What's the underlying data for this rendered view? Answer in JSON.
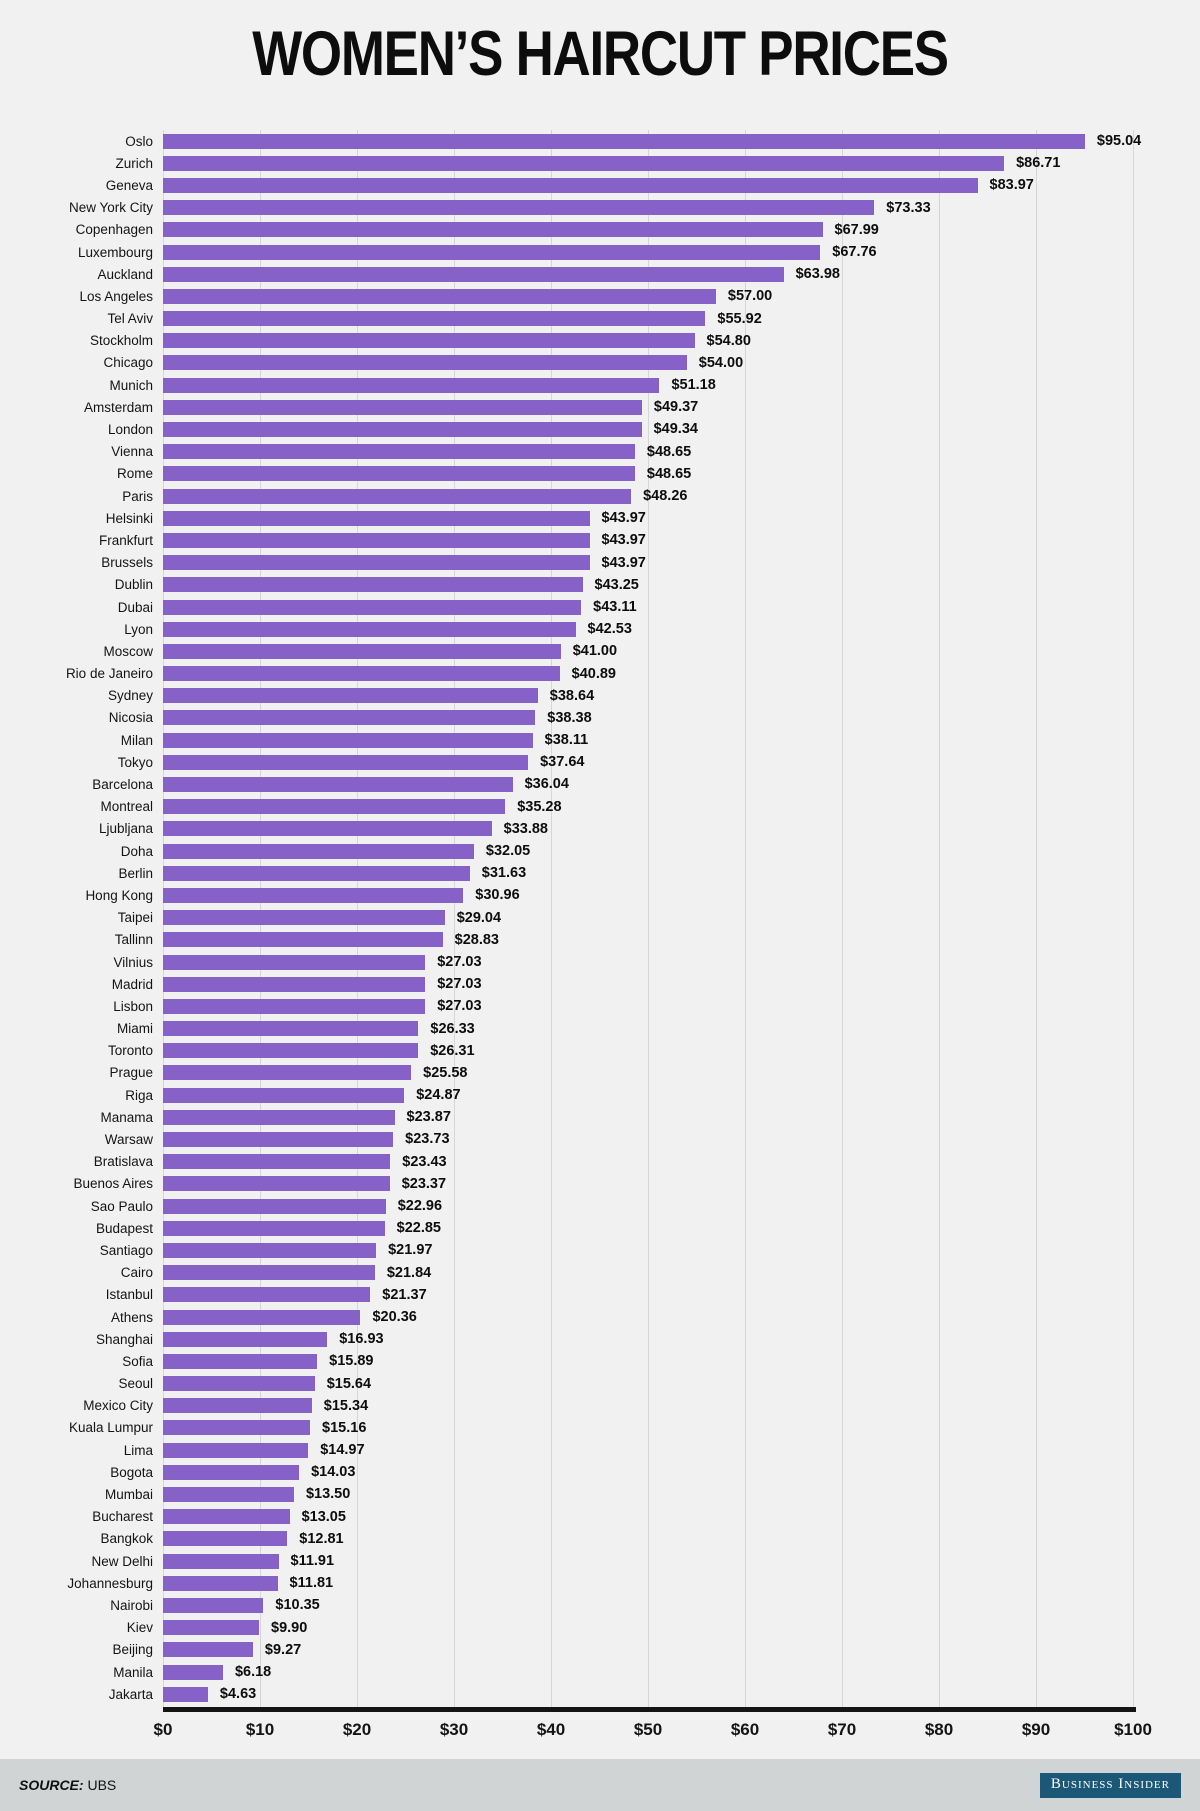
{
  "title": "WOMEN’S HAIRCUT PRICES",
  "chart_data": {
    "type": "bar",
    "orientation": "horizontal",
    "title": "WOMEN’S HAIRCUT PRICES",
    "unit": "USD",
    "xlim": [
      0,
      100
    ],
    "x_ticks": [
      "$0",
      "$10",
      "$20",
      "$30",
      "$40",
      "$50",
      "$60",
      "$70",
      "$80",
      "$90",
      "$100"
    ],
    "grid": true,
    "legend": "none",
    "bar_color": "#8561c8",
    "categories": [
      "Oslo",
      "Zurich",
      "Geneva",
      "New York City",
      "Copenhagen",
      "Luxembourg",
      "Auckland",
      "Los Angeles",
      "Tel Aviv",
      "Stockholm",
      "Chicago",
      "Munich",
      "Amsterdam",
      "London",
      "Vienna",
      "Rome",
      "Paris",
      "Helsinki",
      "Frankfurt",
      "Brussels",
      "Dublin",
      "Dubai",
      "Lyon",
      "Moscow",
      "Rio de Janeiro",
      "Sydney",
      "Nicosia",
      "Milan",
      "Tokyo",
      "Barcelona",
      "Montreal",
      "Ljubljana",
      "Doha",
      "Berlin",
      "Hong Kong",
      "Taipei",
      "Tallinn",
      "Vilnius",
      "Madrid",
      "Lisbon",
      "Miami",
      "Toronto",
      "Prague",
      "Riga",
      "Manama",
      "Warsaw",
      "Bratislava",
      "Buenos Aires",
      "Sao Paulo",
      "Budapest",
      "Santiago",
      "Cairo",
      "Istanbul",
      "Athens",
      "Shanghai",
      "Sofia",
      "Seoul",
      "Mexico City",
      "Kuala Lumpur",
      "Lima",
      "Bogota",
      "Mumbai",
      "Bucharest",
      "Bangkok",
      "New Delhi",
      "Johannesburg",
      "Nairobi",
      "Kiev",
      "Beijing",
      "Manila",
      "Jakarta"
    ],
    "values": [
      95.04,
      86.71,
      83.97,
      73.33,
      67.99,
      67.76,
      63.98,
      57.0,
      55.92,
      54.8,
      54.0,
      51.18,
      49.37,
      49.34,
      48.65,
      48.65,
      48.26,
      43.97,
      43.97,
      43.97,
      43.25,
      43.11,
      42.53,
      41.0,
      40.89,
      38.64,
      38.38,
      38.11,
      37.64,
      36.04,
      35.28,
      33.88,
      32.05,
      31.63,
      30.96,
      29.04,
      28.83,
      27.03,
      27.03,
      27.03,
      26.33,
      26.31,
      25.58,
      24.87,
      23.87,
      23.73,
      23.43,
      23.37,
      22.96,
      22.85,
      21.97,
      21.84,
      21.37,
      20.36,
      16.93,
      15.89,
      15.64,
      15.34,
      15.16,
      14.97,
      14.03,
      13.5,
      13.05,
      12.81,
      11.91,
      11.81,
      10.35,
      9.9,
      9.27,
      6.18,
      4.63
    ],
    "value_prefix": "$"
  },
  "footer": {
    "source_label": "SOURCE:",
    "source_value": "UBS",
    "brand": "Business Insider",
    "brand_bg": "#1b5878"
  }
}
